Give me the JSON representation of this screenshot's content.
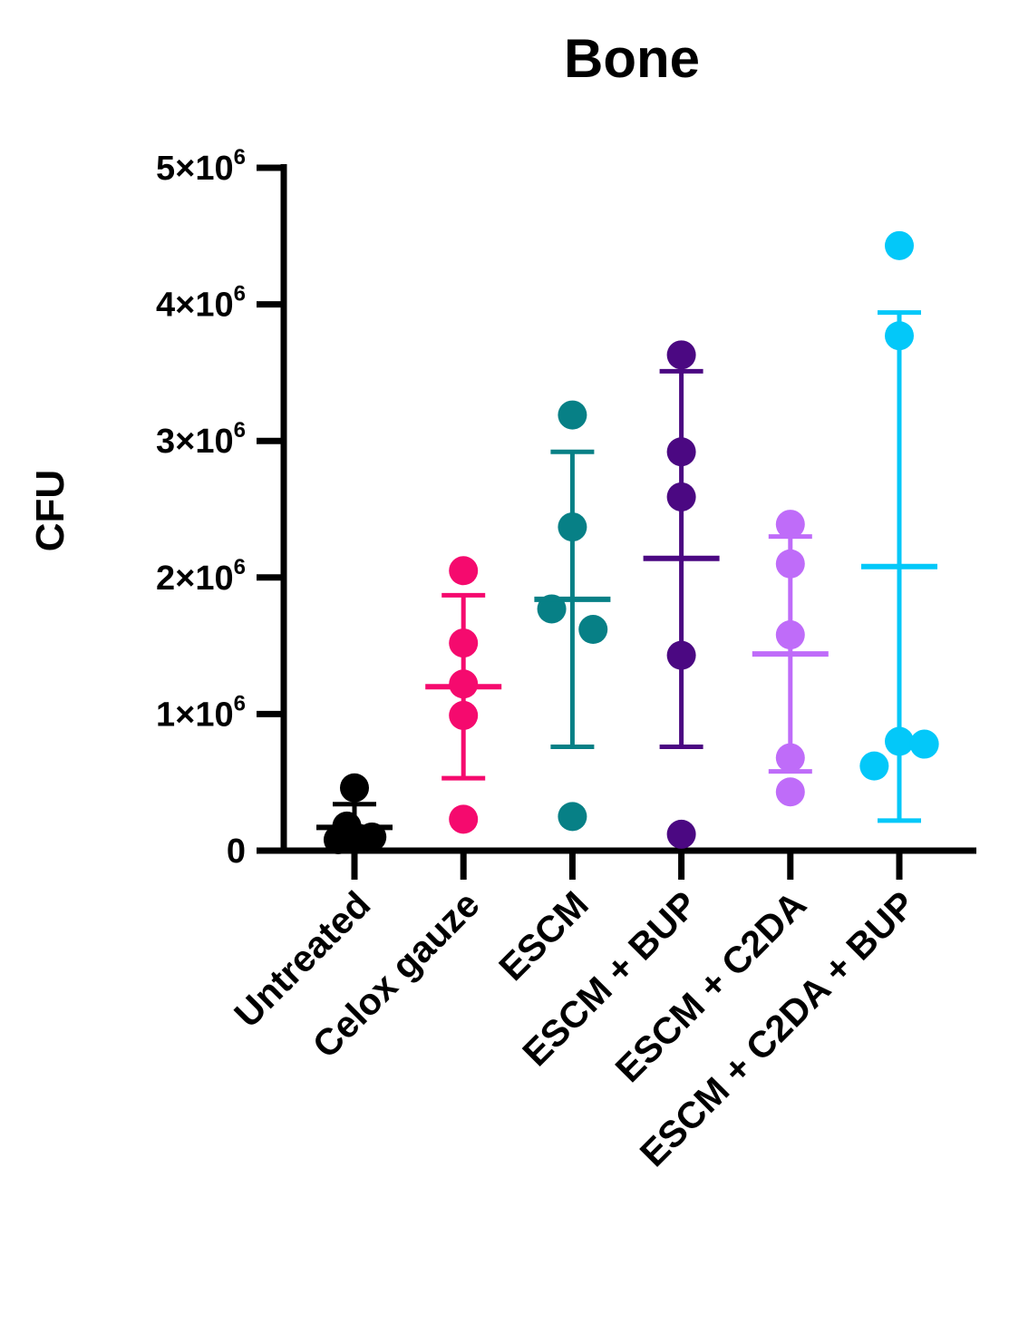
{
  "chart_data": {
    "type": "scatter",
    "title": "Bone",
    "xlabel": "",
    "ylabel": "CFU",
    "ylim": [
      0,
      5000000
    ],
    "yticks": [
      {
        "value": 0,
        "label": "0",
        "sup": ""
      },
      {
        "value": 1000000,
        "label": "1×10",
        "sup": "6"
      },
      {
        "value": 2000000,
        "label": "2×10",
        "sup": "6"
      },
      {
        "value": 3000000,
        "label": "3×10",
        "sup": "6"
      },
      {
        "value": 4000000,
        "label": "4×10",
        "sup": "6"
      },
      {
        "value": 5000000,
        "label": "5×10",
        "sup": "6"
      }
    ],
    "categories": [
      "Untreated",
      "Celox gauze",
      "ESCM",
      "ESCM + BUP",
      "ESCM + C2DA",
      "ESCM + C2DA + BUP"
    ],
    "series": [
      {
        "name": "Untreated",
        "color": "#000000",
        "mean": 170000,
        "sd_low": 10000,
        "sd_high": 340000,
        "points": [
          {
            "offset": 0.0,
            "value": 460000
          },
          {
            "offset": -0.07,
            "value": 180000
          },
          {
            "offset": -0.15,
            "value": 80000
          },
          {
            "offset": 0.04,
            "value": 90000
          },
          {
            "offset": 0.16,
            "value": 100000
          }
        ]
      },
      {
        "name": "Celox gauze",
        "color": "#f50a6e",
        "mean": 1200000,
        "sd_low": 530000,
        "sd_high": 1870000,
        "points": [
          {
            "offset": 0.0,
            "value": 2050000
          },
          {
            "offset": 0.0,
            "value": 1520000
          },
          {
            "offset": 0.0,
            "value": 1220000
          },
          {
            "offset": 0.0,
            "value": 990000
          },
          {
            "offset": 0.0,
            "value": 230000
          }
        ]
      },
      {
        "name": "ESCM",
        "color": "#078086",
        "mean": 1840000,
        "sd_low": 760000,
        "sd_high": 2920000,
        "points": [
          {
            "offset": 0.0,
            "value": 3190000
          },
          {
            "offset": 0.0,
            "value": 2370000
          },
          {
            "offset": -0.19,
            "value": 1770000
          },
          {
            "offset": 0.19,
            "value": 1620000
          },
          {
            "offset": 0.0,
            "value": 250000
          }
        ]
      },
      {
        "name": "ESCM + BUP",
        "color": "#4b0882",
        "mean": 2140000,
        "sd_low": 760000,
        "sd_high": 3510000,
        "points": [
          {
            "offset": 0.0,
            "value": 3630000
          },
          {
            "offset": 0.0,
            "value": 2920000
          },
          {
            "offset": 0.0,
            "value": 2590000
          },
          {
            "offset": 0.0,
            "value": 1430000
          },
          {
            "offset": 0.0,
            "value": 120000
          }
        ]
      },
      {
        "name": "ESCM + C2DA",
        "color": "#bf6cf9",
        "mean": 1440000,
        "sd_low": 580000,
        "sd_high": 2300000,
        "points": [
          {
            "offset": 0.0,
            "value": 2390000
          },
          {
            "offset": 0.0,
            "value": 2100000
          },
          {
            "offset": 0.0,
            "value": 1580000
          },
          {
            "offset": 0.0,
            "value": 680000
          },
          {
            "offset": 0.0,
            "value": 430000
          }
        ]
      },
      {
        "name": "ESCM + C2DA + BUP",
        "color": "#03c8f9",
        "mean": 2080000,
        "sd_low": 220000,
        "sd_high": 3940000,
        "points": [
          {
            "offset": 0.0,
            "value": 4430000
          },
          {
            "offset": 0.0,
            "value": 3770000
          },
          {
            "offset": 0.0,
            "value": 800000
          },
          {
            "offset": 0.23,
            "value": 780000
          },
          {
            "offset": -0.23,
            "value": 620000
          }
        ]
      }
    ]
  }
}
